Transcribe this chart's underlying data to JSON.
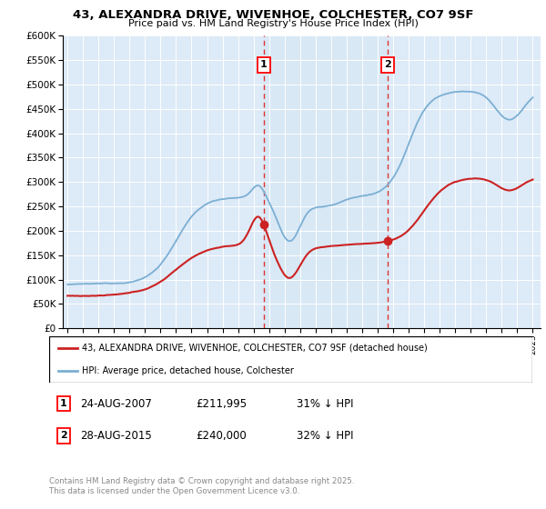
{
  "title1": "43, ALEXANDRA DRIVE, WIVENHOE, COLCHESTER, CO7 9SF",
  "title2": "Price paid vs. HM Land Registry's House Price Index (HPI)",
  "legend_label1": "43, ALEXANDRA DRIVE, WIVENHOE, COLCHESTER, CO7 9SF (detached house)",
  "legend_label2": "HPI: Average price, detached house, Colchester",
  "note1_date": "24-AUG-2007",
  "note1_price": "£211,995",
  "note1_hpi": "31% ↓ HPI",
  "note2_date": "28-AUG-2015",
  "note2_price": "£240,000",
  "note2_hpi": "32% ↓ HPI",
  "footer": "Contains HM Land Registry data © Crown copyright and database right 2025.\nThis data is licensed under the Open Government Licence v3.0.",
  "marker1_year": 2007.65,
  "marker2_year": 2015.65,
  "marker1_price": 211995,
  "marker2_price": 240000,
  "hpi_color": "#7bafd4",
  "hpi_fill_color": "#d6e8f5",
  "price_color": "#cc2222",
  "vline_color": "#dd3333",
  "background_chart": "#ddeaf7",
  "ylim_max": 600000,
  "ytick_step": 50000,
  "year_start": 1995,
  "year_end": 2025
}
